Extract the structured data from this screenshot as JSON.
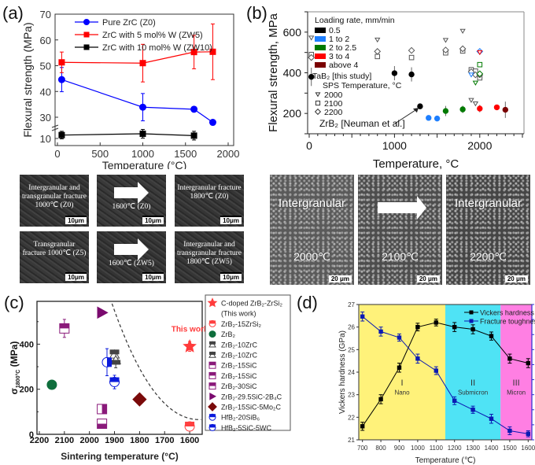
{
  "panels": {
    "a": {
      "label": "(a)"
    },
    "b": {
      "label": "(b)"
    },
    "c": {
      "label": "(c)"
    },
    "d": {
      "label": "(d)"
    }
  },
  "sem_a": [
    {
      "caption": "Intergranular and transgranular fracture 1000℃ (Z0)",
      "scale": "10μm",
      "arrow": false
    },
    {
      "caption": "1600℃ (Z0)",
      "scale": "10μm",
      "arrow": true
    },
    {
      "caption": "Intergranular fracture 1800℃ (Z0)",
      "scale": "10μm",
      "arrow": false
    },
    {
      "caption": "Transgranular fracture 1000℃ (Z5)",
      "scale": "10μm",
      "arrow": false
    },
    {
      "caption": "1600℃ (ZW5)",
      "scale": "10μm",
      "arrow": true
    },
    {
      "caption": "Intergranular and transgranular fracture 1800℃ (ZW5)",
      "scale": "10μm",
      "arrow": false
    }
  ],
  "sem_b": [
    {
      "top": "Intergranular",
      "temp": "2000℃",
      "scale": "20 μm",
      "arrow": false
    },
    {
      "top": "",
      "temp": "2100℃",
      "scale": "20 μm",
      "arrow": true
    },
    {
      "top": "Intergranular",
      "temp": "2200℃",
      "scale": "20 μm",
      "arrow": false
    }
  ],
  "chart_data": [
    {
      "id": "a",
      "type": "line",
      "title": "",
      "xlabel": "Temperature (°C)",
      "ylabel": "Flexural strength (MPa)",
      "xlim": [
        0,
        2000
      ],
      "ylim": [
        10,
        70
      ],
      "xticks": [
        0,
        500,
        1000,
        1500,
        2000
      ],
      "yticks": [
        10,
        30,
        40,
        50,
        60,
        70
      ],
      "axis_break": "between 10 and 30",
      "legend_position": "top-right",
      "series": [
        {
          "name": "Pure ZrC (Z0)",
          "color": "#0000ff",
          "marker": "circle",
          "x": [
            50,
            1000,
            1600,
            1820
          ],
          "y": [
            44.6,
            33.9,
            33.1,
            28.0
          ],
          "err": [
            4.7,
            5.3,
            1.0,
            0.6
          ]
        },
        {
          "name": "ZrC with 5 mol% W (ZW5)",
          "color": "#ff0000",
          "marker": "square",
          "x": [
            50,
            1000,
            1600,
            1820
          ],
          "y": [
            51.3,
            51.0,
            55.3,
            55.4
          ],
          "err": [
            4.0,
            7.3,
            6.5,
            10.8
          ]
        },
        {
          "name": "ZrC with 10 mol% W (ZW10)",
          "color": "#000000",
          "marker": "square",
          "x": [
            50,
            1000,
            1600
          ],
          "y": [
            11.8,
            12.5,
            11.5
          ],
          "err": [
            2.0,
            2.3,
            2.3
          ]
        }
      ]
    },
    {
      "id": "b",
      "type": "scatter",
      "title": "",
      "xlabel": "Temperature, °C",
      "ylabel": "Flexural strength, MPa",
      "xlim": [
        0,
        2500
      ],
      "ylim": [
        100,
        700
      ],
      "xticks": [
        0,
        1000,
        2000
      ],
      "yticks": [
        200,
        400,
        600
      ],
      "legend_title": "Loading rate, mm/min",
      "legend_position": "top-left",
      "loading_rates": [
        {
          "name": "0.5",
          "color": "#000000"
        },
        {
          "name": "1 to 2",
          "color": "#1e7fff"
        },
        {
          "name": "2 to 2.5",
          "color": "#007a00"
        },
        {
          "name": "3 to 4",
          "color": "#ff0000"
        },
        {
          "name": "above 4",
          "color": "#7a0000"
        }
      ],
      "tab2_legend_title": "TaB₂ [this study]",
      "tab2_legend_subtitle": "SPS Temperature, °C",
      "sps_markers": [
        {
          "name": "2000",
          "marker": "triangle-down"
        },
        {
          "name": "2100",
          "marker": "square"
        },
        {
          "name": "2200",
          "marker": "diamond"
        }
      ],
      "annotation": "ZrB₂ [Neuman et al.]",
      "zrb2_points": [
        {
          "x": 25,
          "y": 380,
          "err": 45,
          "rate": "0.5"
        },
        {
          "x": 1000,
          "y": 398,
          "err": 35,
          "rate": "0.5"
        },
        {
          "x": 1200,
          "y": 392,
          "err": 35,
          "rate": "0.5"
        },
        {
          "x": 1300,
          "y": 235,
          "err": 8,
          "rate": "0.5"
        },
        {
          "x": 1400,
          "y": 178,
          "err": 12,
          "rate": "1 to 2"
        },
        {
          "x": 1500,
          "y": 175,
          "err": 5,
          "rate": "1 to 2"
        },
        {
          "x": 1600,
          "y": 212,
          "err": 25,
          "rate": "2 to 2.5"
        },
        {
          "x": 1800,
          "y": 220,
          "err": 18,
          "rate": "2 to 2.5"
        },
        {
          "x": 2000,
          "y": 224,
          "err": 18,
          "rate": "3 to 4"
        },
        {
          "x": 2200,
          "y": 230,
          "err": 8,
          "rate": "3 to 4"
        },
        {
          "x": 2300,
          "y": 218,
          "err": 40,
          "rate": "above 4"
        }
      ],
      "tab2_points": [
        {
          "x": 25,
          "y": 572,
          "sps": "2000",
          "rate": "0.5"
        },
        {
          "x": 25,
          "y": 490,
          "sps": "2100",
          "rate": "0.5"
        },
        {
          "x": 25,
          "y": 475,
          "sps": "2200",
          "rate": "0.5"
        },
        {
          "x": 800,
          "y": 562,
          "sps": "2000",
          "rate": "0.5"
        },
        {
          "x": 800,
          "y": 480,
          "sps": "2100",
          "rate": "0.5"
        },
        {
          "x": 800,
          "y": 505,
          "sps": "2200",
          "rate": "0.5"
        },
        {
          "x": 1200,
          "y": 475,
          "sps": "2100",
          "rate": "0.5"
        },
        {
          "x": 1200,
          "y": 510,
          "sps": "2200",
          "rate": "0.5"
        },
        {
          "x": 1600,
          "y": 560,
          "sps": "2000",
          "rate": "0.5"
        },
        {
          "x": 1600,
          "y": 498,
          "sps": "2100",
          "rate": "0.5"
        },
        {
          "x": 1600,
          "y": 512,
          "sps": "2200",
          "rate": "0.5"
        },
        {
          "x": 1800,
          "y": 605,
          "sps": "2000",
          "rate": "0.5"
        },
        {
          "x": 1800,
          "y": 507,
          "sps": "2100",
          "rate": "0.5"
        },
        {
          "x": 1800,
          "y": 518,
          "sps": "2200",
          "rate": "0.5"
        },
        {
          "x": 1900,
          "y": 265,
          "sps": "2000",
          "rate": "0.5"
        },
        {
          "x": 1950,
          "y": 248,
          "sps": "2000",
          "rate": "0.5"
        },
        {
          "x": 1900,
          "y": 415,
          "sps": "2100",
          "rate": "0.5"
        },
        {
          "x": 1950,
          "y": 408,
          "sps": "2100",
          "rate": "0.5"
        },
        {
          "x": 2000,
          "y": 385,
          "sps": "2100",
          "rate": "0.5"
        },
        {
          "x": 2000,
          "y": 375,
          "sps": "2100",
          "rate": "0.5"
        },
        {
          "x": 1900,
          "y": 405,
          "sps": "2200",
          "rate": "0.5"
        },
        {
          "x": 1950,
          "y": 390,
          "sps": "2200",
          "rate": "0.5"
        },
        {
          "x": 2000,
          "y": 390,
          "sps": "2200",
          "rate": "0.5"
        },
        {
          "x": 1900,
          "y": 390,
          "sps": "2000",
          "rate": "1 to 2"
        },
        {
          "x": 2000,
          "y": 505,
          "sps": "2200",
          "rate": "1 to 2"
        },
        {
          "x": 2000,
          "y": 440,
          "sps": "2100",
          "rate": "2 to 2.5"
        },
        {
          "x": 1950,
          "y": 350,
          "sps": "2000",
          "rate": "2 to 2.5"
        },
        {
          "x": 2000,
          "y": 395,
          "sps": "2200",
          "rate": "2 to 2.5"
        },
        {
          "x": 2000,
          "y": 500,
          "sps": "2000",
          "rate": "3 to 4"
        }
      ]
    },
    {
      "id": "c",
      "type": "scatter",
      "title": "",
      "xlabel": "Sintering temperature (°C)",
      "ylabel": "σ1800°C (MPa)",
      "ylabel_main": "σ",
      "ylabel_sub": "1800°C",
      "ylabel_tail": " (MPa)",
      "xlim": [
        2200,
        1550
      ],
      "xreversed": true,
      "ylim": [
        0,
        590
      ],
      "xticks": [
        2200,
        2100,
        2000,
        1900,
        1800,
        1700,
        1600
      ],
      "yticks": [
        0,
        200,
        400
      ],
      "annotation": "This work",
      "annotation_color": "#ff3b3b",
      "trend_curve": "dashed hyperbolic boundary from (1910, 580) to (1555, 65)",
      "legend_position": "right-outside",
      "points": [
        {
          "name": "C-doped ZrB₂-ZrSi₂ (This work)",
          "legend_line2": "(This work)",
          "legend_main": "C-doped ZrB₂-ZrSi₂",
          "x": 1600,
          "y": 390,
          "err": 22,
          "marker": "star",
          "color": "#ff3b3b"
        },
        {
          "name": "ZrB₂-15ZrSi₂",
          "x": 1600,
          "y": 35,
          "err": 8,
          "marker": "circle-half-top",
          "color": "#ff4040"
        },
        {
          "name": "ZrB₂",
          "x": 2150,
          "y": 220,
          "err": 0,
          "marker": "circle",
          "color": "#0f6e3c"
        },
        {
          "name": "ZrB₂-10ZrC",
          "x": 1900,
          "y": 355,
          "err": 0,
          "marker": "triangle-half",
          "color": "#444444"
        },
        {
          "name": "ZrB₂-10ZrC",
          "x": 1895,
          "y": 330,
          "err": 35,
          "marker": "triangle-bottom",
          "color": "#444444"
        },
        {
          "name": "ZrB₂-15SiC",
          "x": 2100,
          "y": 470,
          "err": 40,
          "marker": "square-half-top",
          "color": "#8a1a7a"
        },
        {
          "name": "ZrB₂-15SiC",
          "x": 1950,
          "y": 112,
          "err": 0,
          "marker": "square-half-right",
          "color": "#8a1a7a"
        },
        {
          "name": "ZrB₂-30SiC",
          "x": 1950,
          "y": 47,
          "err": 0,
          "marker": "square-half-bottom",
          "color": "#8a1a7a"
        },
        {
          "name": "ZrB₂-29.5SiC-2B₄C",
          "x": 1950,
          "y": 540,
          "err": 0,
          "marker": "triangle-right",
          "color": "#7a0a6e"
        },
        {
          "name": "ZrB₂-15SiC-5Mo₂C",
          "x": 1800,
          "y": 155,
          "err": 0,
          "marker": "diamond",
          "color": "#7a0a0a"
        },
        {
          "name": "HfB₂-20SiB₆",
          "x": 1900,
          "y": 232,
          "err": 30,
          "marker": "hex-half-top",
          "color": "#0a1adc"
        },
        {
          "name": "HfB₂-5SiC-5WC",
          "x": 1930,
          "y": 320,
          "err": 60,
          "marker": "hex-half-right",
          "color": "#0a1adc"
        }
      ]
    },
    {
      "id": "d",
      "type": "line",
      "title": "",
      "xlabel": "Temperature (℃)",
      "ylabel": "Vickers hardness (GPa)",
      "y2label": "Fracture toughness (MPa·m1/2)",
      "y2label_main": "Fracture toughness (MPa·m",
      "y2label_sup": "1/2",
      "y2label_tail": ")",
      "xlim": [
        680,
        1620
      ],
      "ylim": [
        21,
        27
      ],
      "y2lim": [
        2.5,
        7.0
      ],
      "xticks": [
        700,
        800,
        900,
        1000,
        1100,
        1200,
        1300,
        1400,
        1500,
        1600
      ],
      "yticks": [
        21,
        22,
        23,
        24,
        25,
        26,
        27
      ],
      "y2ticks": [
        2.5,
        3.0,
        3.5,
        4.0,
        4.5,
        5.0,
        5.5,
        6.0,
        6.5,
        7.0
      ],
      "legend_position": "top-right",
      "regions": [
        {
          "from": 680,
          "to": 1150,
          "color": "#fff27a",
          "roman": "I",
          "name": "Nano"
        },
        {
          "from": 1150,
          "to": 1450,
          "color": "#4fe3f5",
          "roman": "II",
          "name": "Submicron"
        },
        {
          "from": 1450,
          "to": 1620,
          "color": "#ff7fe3",
          "roman": "III",
          "name": "Micron"
        }
      ],
      "series": [
        {
          "name": "Vickers hardness",
          "axis": "left",
          "color": "#000000",
          "x": [
            700,
            800,
            900,
            1000,
            1100,
            1200,
            1300,
            1400,
            1500,
            1600
          ],
          "y": [
            21.6,
            22.8,
            24.2,
            26.0,
            26.2,
            26.0,
            25.9,
            25.6,
            24.6,
            24.4
          ],
          "err": [
            0.18,
            0.2,
            0.2,
            0.17,
            0.15,
            0.2,
            0.2,
            0.18,
            0.2,
            0.2
          ]
        },
        {
          "name": "Fracture toughness",
          "axis": "right",
          "color": "#0a1ab4",
          "x": [
            700,
            800,
            900,
            1000,
            1100,
            1200,
            1300,
            1400,
            1500,
            1600
          ],
          "y": [
            6.6,
            6.1,
            5.9,
            5.2,
            4.8,
            3.8,
            3.5,
            3.2,
            2.8,
            2.7
          ],
          "err": [
            0.15,
            0.15,
            0.12,
            0.15,
            0.13,
            0.13,
            0.12,
            0.15,
            0.13,
            0.1
          ]
        }
      ]
    }
  ]
}
